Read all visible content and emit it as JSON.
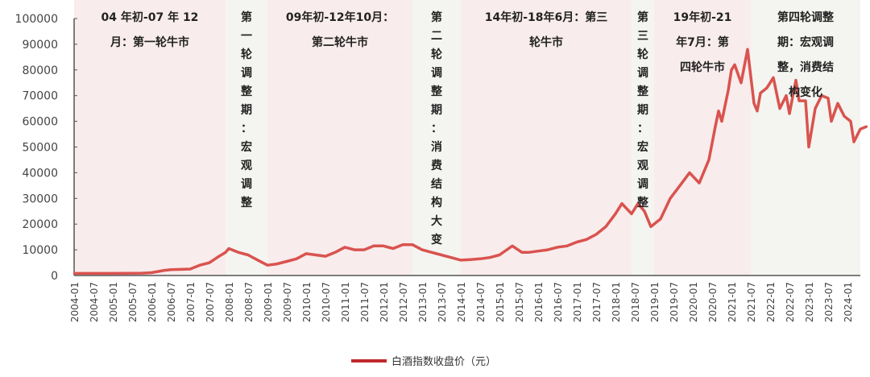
{
  "chart_data": {
    "type": "line",
    "title": "",
    "xlabel": "",
    "ylabel": "",
    "ylim": [
      0,
      100000
    ],
    "yticks": [
      0,
      10000,
      20000,
      30000,
      40000,
      50000,
      60000,
      70000,
      80000,
      90000,
      100000
    ],
    "xticks": [
      "2004-01",
      "2004-07",
      "2005-01",
      "2005-07",
      "2006-01",
      "2006-07",
      "2007-01",
      "2007-07",
      "2008-01",
      "2008-07",
      "2009-01",
      "2009-07",
      "2010-01",
      "2010-07",
      "2011-01",
      "2011-07",
      "2012-01",
      "2012-07",
      "2013-01",
      "2013-07",
      "2014-01",
      "2014-07",
      "2015-01",
      "2015-07",
      "2016-01",
      "2016-07",
      "2017-01",
      "2017-07",
      "2018-01",
      "2018-07",
      "2019-01",
      "2019-07",
      "2020-01",
      "2020-07",
      "2021-01",
      "2021-07",
      "2022-01",
      "2022-07",
      "2023-01",
      "2023-07",
      "2024-01"
    ],
    "grid": false,
    "legend": {
      "position": "bottom",
      "entries": [
        "白酒指数收盘价（元）"
      ]
    },
    "series": [
      {
        "name": "白酒指数收盘价（元）",
        "color": "#d9534f",
        "x": [
          "2004-01",
          "2005-01",
          "2005-10",
          "2006-01",
          "2006-05",
          "2006-07",
          "2007-01",
          "2007-04",
          "2007-07",
          "2007-10",
          "2007-12",
          "2008-01",
          "2008-04",
          "2008-07",
          "2008-10",
          "2009-01",
          "2009-04",
          "2009-07",
          "2009-10",
          "2010-01",
          "2010-04",
          "2010-07",
          "2010-10",
          "2011-01",
          "2011-04",
          "2011-07",
          "2011-10",
          "2012-01",
          "2012-04",
          "2012-07",
          "2012-10",
          "2013-01",
          "2013-04",
          "2013-07",
          "2013-10",
          "2014-01",
          "2014-04",
          "2014-07",
          "2014-10",
          "2015-01",
          "2015-05",
          "2015-08",
          "2015-10",
          "2016-01",
          "2016-04",
          "2016-07",
          "2016-10",
          "2017-01",
          "2017-04",
          "2017-07",
          "2017-10",
          "2018-01",
          "2018-03",
          "2018-06",
          "2018-08",
          "2018-10",
          "2018-12",
          "2019-03",
          "2019-06",
          "2019-09",
          "2019-12",
          "2020-03",
          "2020-06",
          "2020-08",
          "2020-09",
          "2020-10",
          "2020-12",
          "2021-01",
          "2021-02",
          "2021-04",
          "2021-06",
          "2021-08",
          "2021-09",
          "2021-10",
          "2021-12",
          "2022-02",
          "2022-04",
          "2022-06",
          "2022-07",
          "2022-09",
          "2022-10",
          "2022-12",
          "2023-01",
          "2023-03",
          "2023-05",
          "2023-07",
          "2023-08",
          "2023-10",
          "2023-12",
          "2024-02",
          "2024-03",
          "2024-05",
          "2024-07"
        ],
        "values": [
          800,
          800,
          900,
          1100,
          2000,
          2300,
          2500,
          4000,
          5000,
          7500,
          9000,
          10500,
          9000,
          8000,
          6000,
          4000,
          4500,
          5500,
          6500,
          8500,
          8000,
          7500,
          9000,
          11000,
          10000,
          10000,
          11500,
          11500,
          10500,
          12000,
          12000,
          10000,
          9000,
          8000,
          7000,
          6000,
          6200,
          6500,
          7000,
          8000,
          11500,
          9000,
          9000,
          9500,
          10000,
          11000,
          11500,
          13000,
          14000,
          16000,
          19000,
          24000,
          28000,
          24000,
          28000,
          25000,
          19000,
          22000,
          30000,
          35000,
          40000,
          36000,
          45000,
          58000,
          64000,
          60000,
          72000,
          80000,
          82000,
          75000,
          88000,
          67000,
          64000,
          71000,
          73000,
          77000,
          65000,
          70000,
          63000,
          76000,
          68000,
          68000,
          50000,
          65000,
          70000,
          69000,
          60000,
          67000,
          62000,
          60000,
          52000,
          57000,
          58000
        ]
      }
    ],
    "periods": [
      {
        "start": "2004-01",
        "end": "2007-12",
        "type": "bull",
        "label": [
          "04 年初-07 年 12",
          "月：第一轮牛市"
        ]
      },
      {
        "start": "2007-12",
        "end": "2009-01",
        "type": "adjust",
        "label": [
          "第",
          "一",
          "轮",
          "调",
          "整",
          "期",
          "：",
          "宏",
          "观",
          "调",
          "整"
        ]
      },
      {
        "start": "2009-01",
        "end": "2012-10",
        "type": "bull",
        "label": [
          "09年初-12年10月：",
          "第二轮牛市"
        ]
      },
      {
        "start": "2012-10",
        "end": "2014-01",
        "type": "adjust",
        "label": [
          "第",
          "二",
          "轮",
          "调",
          "整",
          "期",
          "：",
          "消",
          "费",
          "结",
          "构",
          "大",
          "变"
        ]
      },
      {
        "start": "2014-01",
        "end": "2018-06",
        "type": "bull",
        "label": [
          "14年初-18年6月：第三",
          "轮牛市"
        ]
      },
      {
        "start": "2018-06",
        "end": "2019-01",
        "type": "adjust",
        "label": [
          "第",
          "三",
          "轮",
          "调",
          "整",
          "期",
          "：",
          "宏",
          "观",
          "调",
          "整"
        ]
      },
      {
        "start": "2019-01",
        "end": "2021-07",
        "type": "bull",
        "label": [
          "19年初-21",
          "年7月：第",
          "四轮牛市"
        ]
      },
      {
        "start": "2021-07",
        "end": "2024-08",
        "type": "adjust",
        "label": [
          "第四轮调整",
          "期：宏观调",
          "整，消费结",
          "构变化"
        ]
      }
    ],
    "colors": {
      "bull_band": "#f9ecec",
      "adjust_band": "#f4f5f0",
      "line": "#d9534f",
      "axis": "#555555"
    }
  }
}
